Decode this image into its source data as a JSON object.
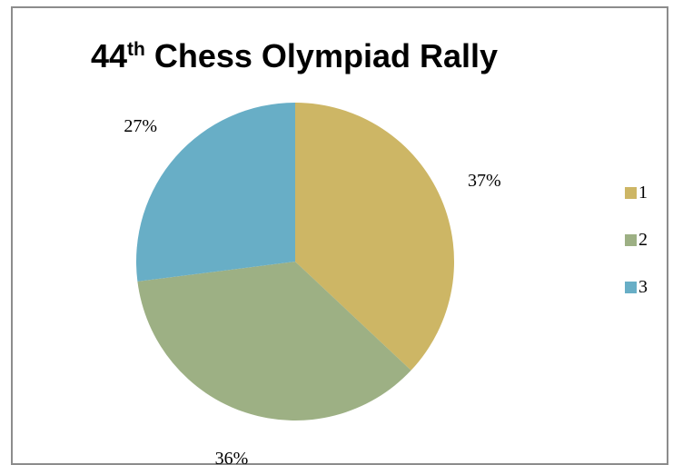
{
  "chart_data": {
    "type": "pie",
    "title": {
      "main_prefix": "44",
      "superscript": "th",
      "main_suffix": " Chess Olympiad Rally"
    },
    "categories": [
      "1",
      "2",
      "3"
    ],
    "values": [
      37,
      36,
      27
    ],
    "labels": [
      "37%",
      "36%",
      "27%"
    ],
    "colors": [
      "#CDB665",
      "#9DB084",
      "#68AEC6"
    ],
    "legend_position": "right"
  }
}
